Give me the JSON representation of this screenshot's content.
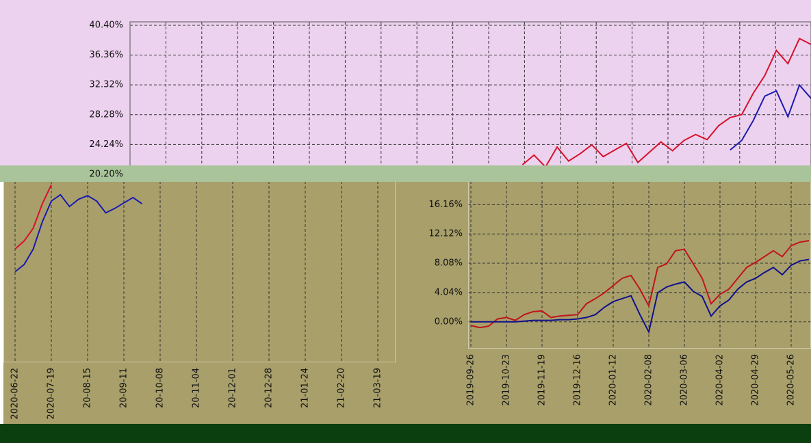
{
  "chart_data": [
    {
      "type": "line",
      "ylim": [
        19.83,
        40.86
      ],
      "yticks": [
        {
          "value": 20.2,
          "label": "20.20%"
        },
        {
          "value": 24.24,
          "label": "24.24%"
        },
        {
          "value": 28.28,
          "label": "28.28%"
        },
        {
          "value": 32.32,
          "label": "32.32%"
        },
        {
          "value": 36.36,
          "label": "36.36%"
        },
        {
          "value": 40.4,
          "label": "40.40%"
        }
      ],
      "grid": true,
      "series": [
        {
          "color": "#d8102c",
          "values": [
            null,
            null,
            null,
            null,
            null,
            null,
            null,
            null,
            null,
            null,
            null,
            null,
            null,
            null,
            null,
            null,
            null,
            null,
            null,
            null,
            null,
            null,
            null,
            null,
            null,
            null,
            null,
            null,
            null,
            null,
            null,
            null,
            null,
            null,
            21.5,
            22.8,
            21.2,
            23.9,
            22.0,
            23.0,
            24.2,
            22.6,
            23.5,
            24.4,
            21.8,
            23.2,
            24.6,
            23.4,
            24.8,
            25.6,
            24.9,
            26.8,
            27.9,
            28.3,
            31.2,
            33.6,
            37.0,
            35.2,
            38.6,
            37.8
          ]
        },
        {
          "color": "#1a1ab0",
          "values": [
            null,
            null,
            null,
            null,
            null,
            null,
            null,
            null,
            null,
            null,
            null,
            null,
            null,
            null,
            null,
            null,
            null,
            null,
            null,
            null,
            null,
            null,
            null,
            null,
            null,
            null,
            null,
            null,
            null,
            null,
            null,
            null,
            null,
            null,
            null,
            null,
            null,
            null,
            null,
            null,
            null,
            null,
            null,
            null,
            null,
            null,
            null,
            null,
            null,
            null,
            null,
            null,
            23.5,
            24.8,
            27.5,
            30.8,
            31.5,
            28.0,
            32.3,
            30.5
          ]
        }
      ]
    },
    {
      "type": "line",
      "ylim": [
        0,
        20
      ],
      "categories": [
        "2020-06-22",
        null,
        null,
        null,
        "2020-07-19",
        null,
        null,
        null,
        "20-08-15",
        null,
        null,
        null,
        "20-09-11",
        null,
        null,
        null,
        "20-10-08",
        null,
        null,
        null,
        "20-11-04",
        null,
        null,
        null,
        "20-12-01",
        null,
        null,
        null,
        "20-12-28",
        null,
        null,
        null,
        "21-01-24",
        null,
        null,
        null,
        "21-02-20",
        null,
        null,
        null,
        "21-03-19"
      ],
      "series": [
        {
          "color": "#d8102c",
          "values": [
            12.5,
            13.4,
            14.8,
            17.5,
            19.6,
            null,
            null,
            null,
            null,
            null,
            null,
            null,
            null,
            null,
            null,
            null,
            null,
            null,
            null,
            null,
            null,
            null,
            null,
            null,
            null,
            null,
            null,
            null,
            null,
            null,
            null,
            null,
            null,
            null,
            null,
            null,
            null,
            null,
            null,
            null,
            null
          ]
        },
        {
          "color": "#1a1ab0",
          "values": [
            10.0,
            10.8,
            12.5,
            15.5,
            17.8,
            18.5,
            17.2,
            18.0,
            18.4,
            17.8,
            16.5,
            17.0,
            17.6,
            18.2,
            17.5,
            null,
            null,
            null,
            null,
            null,
            null,
            null,
            null,
            null,
            null,
            null,
            null,
            null,
            null,
            null,
            null,
            null,
            null,
            null,
            null,
            null,
            null,
            null,
            null,
            null,
            null
          ]
        }
      ]
    },
    {
      "type": "line",
      "ylim": [
        -3.7,
        19.4
      ],
      "yticks": [
        {
          "value": 0,
          "label": "0.00%"
        },
        {
          "value": 4.04,
          "label": "4.04%"
        },
        {
          "value": 8.08,
          "label": "8.08%"
        },
        {
          "value": 12.12,
          "label": "12.12%"
        },
        {
          "value": 16.16,
          "label": "16.16%"
        }
      ],
      "grid": true,
      "categories": [
        "2019-09-26",
        null,
        null,
        null,
        "2019-10-23",
        null,
        null,
        null,
        "2019-11-19",
        null,
        null,
        null,
        "2019-12-16",
        null,
        null,
        null,
        "2020-01-12",
        null,
        null,
        null,
        "2020-02-08",
        null,
        null,
        null,
        "2020-03-06",
        null,
        null,
        null,
        "2020-04-02",
        null,
        null,
        null,
        "2020-04-29",
        null,
        null,
        null,
        "2020-05-26",
        null,
        null
      ],
      "series": [
        {
          "color": "#c0141c",
          "values": [
            -0.5,
            -0.8,
            -0.6,
            0.4,
            0.6,
            0.2,
            1.0,
            1.4,
            1.5,
            0.6,
            0.8,
            0.9,
            1.0,
            2.5,
            3.2,
            4.0,
            5.0,
            6.0,
            6.4,
            4.5,
            2.2,
            7.5,
            8.0,
            9.8,
            10.0,
            8.0,
            6.0,
            2.5,
            3.8,
            4.5,
            6.0,
            7.5,
            8.2,
            9.0,
            9.8,
            9.0,
            10.5,
            11.0,
            11.2
          ]
        },
        {
          "color": "#10108c",
          "values": [
            0,
            0,
            0,
            0,
            0,
            0,
            0.1,
            0.2,
            0.2,
            0.2,
            0.3,
            0.3,
            0.4,
            0.6,
            1.0,
            2.0,
            2.8,
            3.2,
            3.6,
            1.0,
            -1.4,
            4.0,
            4.8,
            5.2,
            5.5,
            4.2,
            3.5,
            0.8,
            2.2,
            3.0,
            4.5,
            5.5,
            6.0,
            6.8,
            7.5,
            6.5,
            7.8,
            8.4,
            8.6
          ]
        }
      ]
    }
  ]
}
